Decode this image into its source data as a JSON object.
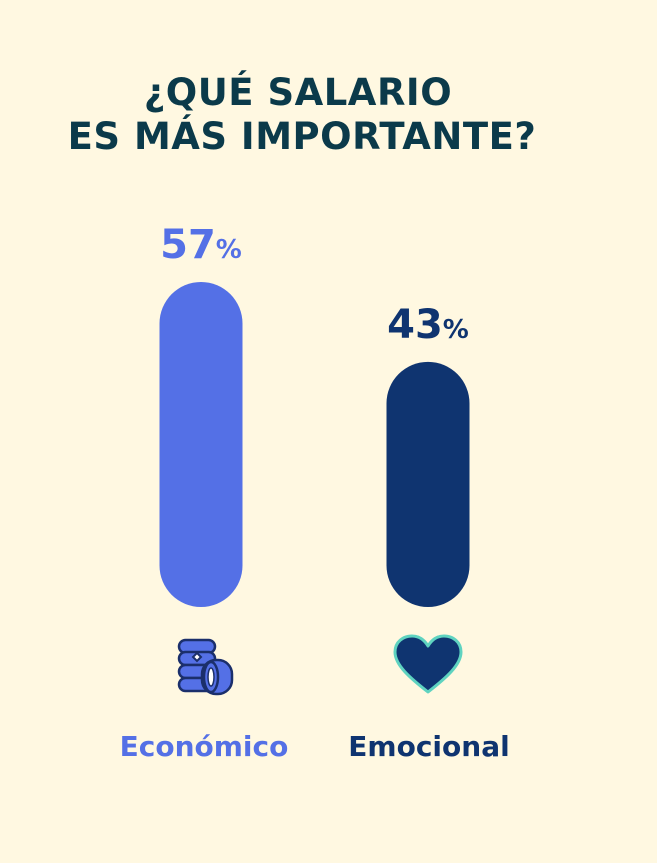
{
  "title_lines": [
    "¿QUÉ SALARIO",
    "ES MÁS IMPORTANTE?"
  ],
  "chart_data": {
    "type": "bar",
    "categories": [
      "Económico",
      "Emocional"
    ],
    "values": [
      57,
      43
    ],
    "value_labels": [
      "57",
      "43"
    ],
    "unit": "%",
    "icons": [
      "coins-icon",
      "heart-icon"
    ],
    "colors": [
      "#5470E6",
      "#0F3470"
    ],
    "ylim": [
      0,
      100
    ]
  }
}
